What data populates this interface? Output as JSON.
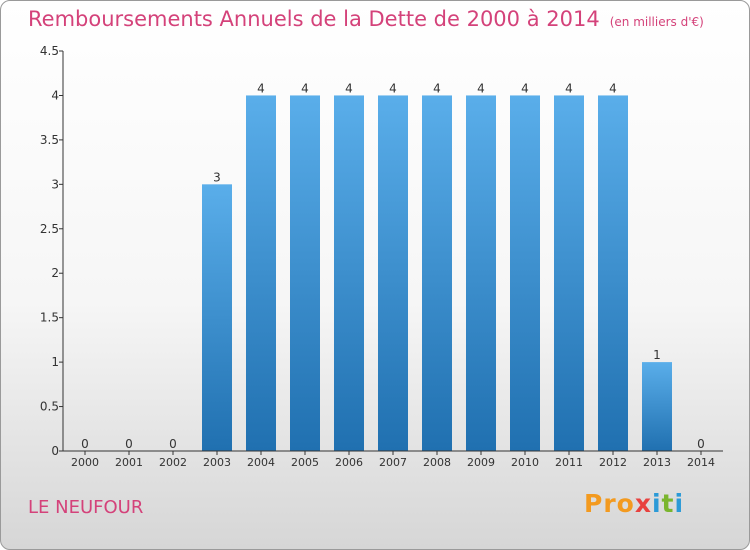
{
  "chart_data": {
    "type": "bar",
    "title": "Remboursements Annuels de la Dette de 2000 à 2014",
    "subtitle": "(en milliers d'€)",
    "categories": [
      "2000",
      "2001",
      "2002",
      "2003",
      "2004",
      "2005",
      "2006",
      "2007",
      "2008",
      "2009",
      "2010",
      "2011",
      "2012",
      "2013",
      "2014"
    ],
    "values": [
      0,
      0,
      0,
      3,
      4,
      4,
      4,
      4,
      4,
      4,
      4,
      4,
      4,
      1,
      0
    ],
    "data_labels": [
      "0",
      "0",
      "0",
      "3",
      "4",
      "4",
      "4",
      "4",
      "4",
      "4",
      "4",
      "4",
      "4",
      "1",
      "0"
    ],
    "ylim": [
      0,
      4.5
    ],
    "yticks": [
      0,
      0.5,
      1,
      1.5,
      2,
      2.5,
      3,
      3.5,
      4,
      4.5
    ],
    "ytick_labels": [
      "0",
      "0.5",
      "1",
      "1.5",
      "2",
      "2.5",
      "3",
      "3.5",
      "4",
      "4.5"
    ],
    "xlabel": "",
    "ylabel": "",
    "grid": false,
    "legend": "none",
    "bar_color_top": "#5aaeea",
    "bar_color_bottom": "#2070b0"
  },
  "footer": {
    "commune": "LE NEUFOUR",
    "logo": {
      "p1": "Pro",
      "p2": "x",
      "p3": "i",
      "p4": "t",
      "p5": "i"
    }
  },
  "colors": {
    "title": "#d4427a",
    "axis": "#333333"
  }
}
